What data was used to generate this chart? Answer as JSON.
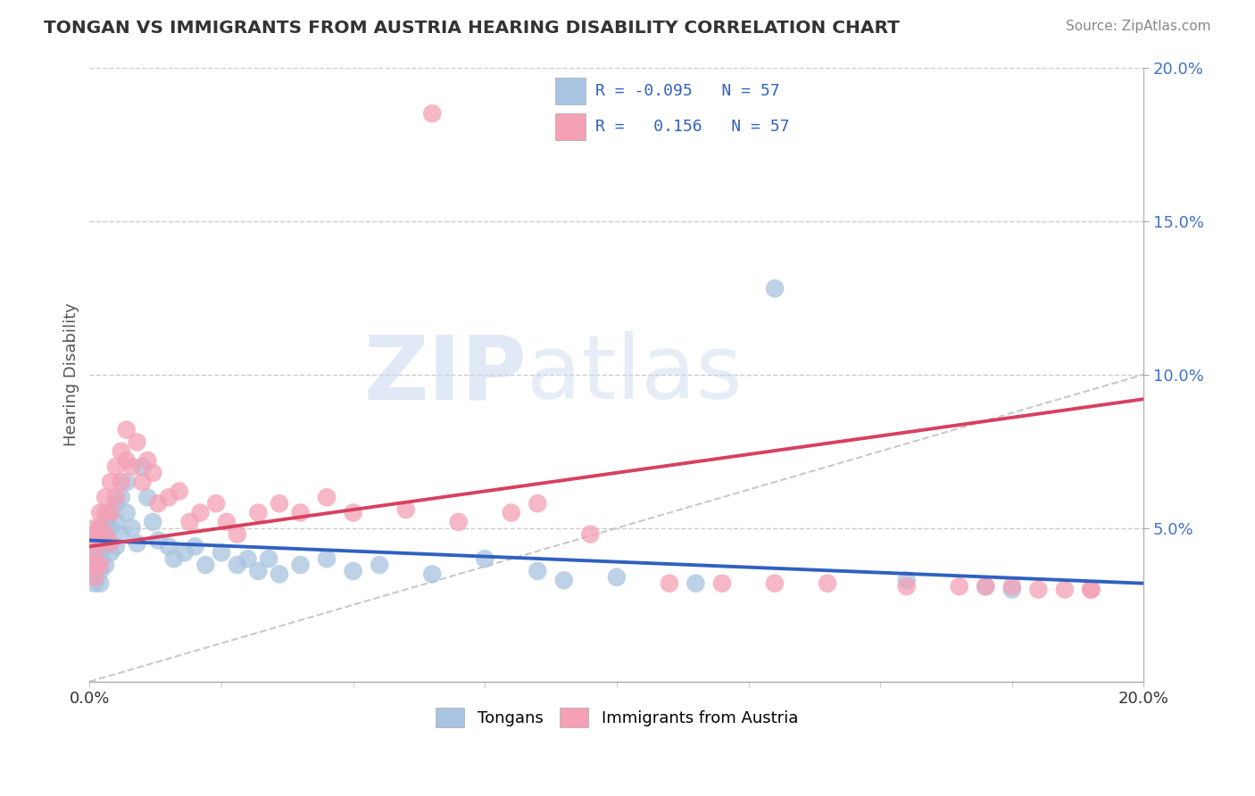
{
  "title": "TONGAN VS IMMIGRANTS FROM AUSTRIA HEARING DISABILITY CORRELATION CHART",
  "source": "Source: ZipAtlas.com",
  "ylabel": "Hearing Disability",
  "watermark_part1": "ZIP",
  "watermark_part2": "atlas",
  "xlim": [
    0.0,
    0.2
  ],
  "ylim": [
    0.0,
    0.2
  ],
  "grid_color": "#cccccc",
  "background_color": "#ffffff",
  "tongan_color": "#a8c4e0",
  "austria_color": "#f4a0b5",
  "tongan_line_color": "#3060c0",
  "austria_line_color": "#d84060",
  "diag_line_color": "#bbbbbb",
  "R_tongan": -0.095,
  "R_austria": 0.156,
  "N_tongan": 57,
  "N_austria": 57,
  "legend_label_1": "Tongans",
  "legend_label_2": "Immigrants from Austria",
  "tongan_line_start_y": 0.046,
  "tongan_line_end_y": 0.032,
  "austria_line_start_y": 0.044,
  "austria_line_end_y": 0.092,
  "diag_line_end_y": 0.1,
  "tongan_scatter_x": [
    0.001,
    0.001,
    0.001,
    0.001,
    0.001,
    0.001,
    0.002,
    0.002,
    0.002,
    0.002,
    0.002,
    0.002,
    0.003,
    0.003,
    0.003,
    0.003,
    0.004,
    0.004,
    0.004,
    0.005,
    0.005,
    0.005,
    0.006,
    0.006,
    0.007,
    0.007,
    0.008,
    0.009,
    0.01,
    0.011,
    0.012,
    0.013,
    0.015,
    0.016,
    0.018,
    0.02,
    0.022,
    0.025,
    0.028,
    0.03,
    0.032,
    0.034,
    0.036,
    0.04,
    0.045,
    0.05,
    0.055,
    0.065,
    0.075,
    0.085,
    0.09,
    0.1,
    0.115,
    0.13,
    0.155,
    0.17,
    0.175
  ],
  "tongan_scatter_y": [
    0.048,
    0.045,
    0.042,
    0.038,
    0.035,
    0.032,
    0.05,
    0.047,
    0.044,
    0.04,
    0.036,
    0.032,
    0.052,
    0.048,
    0.044,
    0.038,
    0.055,
    0.05,
    0.042,
    0.058,
    0.052,
    0.044,
    0.06,
    0.048,
    0.065,
    0.055,
    0.05,
    0.045,
    0.07,
    0.06,
    0.052,
    0.046,
    0.044,
    0.04,
    0.042,
    0.044,
    0.038,
    0.042,
    0.038,
    0.04,
    0.036,
    0.04,
    0.035,
    0.038,
    0.04,
    0.036,
    0.038,
    0.035,
    0.04,
    0.036,
    0.033,
    0.034,
    0.032,
    0.128,
    0.033,
    0.031,
    0.03
  ],
  "austria_scatter_x": [
    0.001,
    0.001,
    0.001,
    0.001,
    0.001,
    0.002,
    0.002,
    0.002,
    0.002,
    0.003,
    0.003,
    0.003,
    0.004,
    0.004,
    0.004,
    0.005,
    0.005,
    0.006,
    0.006,
    0.007,
    0.007,
    0.008,
    0.009,
    0.01,
    0.011,
    0.012,
    0.013,
    0.015,
    0.017,
    0.019,
    0.021,
    0.024,
    0.026,
    0.028,
    0.032,
    0.036,
    0.04,
    0.045,
    0.05,
    0.06,
    0.07,
    0.08,
    0.085,
    0.095,
    0.11,
    0.12,
    0.13,
    0.14,
    0.155,
    0.165,
    0.17,
    0.175,
    0.18,
    0.185,
    0.19,
    0.19,
    0.065
  ],
  "austria_scatter_y": [
    0.05,
    0.046,
    0.042,
    0.038,
    0.034,
    0.055,
    0.05,
    0.046,
    0.038,
    0.06,
    0.055,
    0.048,
    0.065,
    0.055,
    0.045,
    0.07,
    0.06,
    0.075,
    0.065,
    0.082,
    0.072,
    0.07,
    0.078,
    0.065,
    0.072,
    0.068,
    0.058,
    0.06,
    0.062,
    0.052,
    0.055,
    0.058,
    0.052,
    0.048,
    0.055,
    0.058,
    0.055,
    0.06,
    0.055,
    0.056,
    0.052,
    0.055,
    0.058,
    0.048,
    0.032,
    0.032,
    0.032,
    0.032,
    0.031,
    0.031,
    0.031,
    0.031,
    0.03,
    0.03,
    0.03,
    0.03,
    0.185
  ]
}
